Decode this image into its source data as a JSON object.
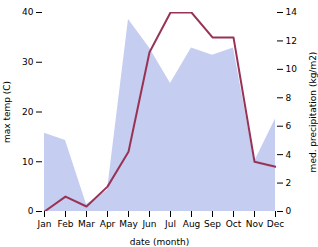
{
  "chart_data": {
    "type": "line",
    "categories": [
      "Jan",
      "Feb",
      "Mar",
      "Apr",
      "May",
      "Jun",
      "Jul",
      "Aug",
      "Sep",
      "Oct",
      "Nov",
      "Dec"
    ],
    "series": [
      {
        "type": "area",
        "axis": "y2",
        "color": "#c5cdf0",
        "values": [
          5.5,
          5.0,
          0.5,
          1.5,
          13.5,
          11.5,
          9.0,
          11.5,
          11.0,
          11.5,
          3.5,
          6.5
        ]
      },
      {
        "type": "line",
        "color": "#993355",
        "values": [
          0,
          3,
          1,
          5,
          12,
          32,
          40,
          40,
          35,
          35,
          10,
          9
        ]
      }
    ],
    "xlabel": "date (month)",
    "ylabel": "max temp (C)",
    "y2label": "med. precipitation (kg/m2)",
    "ylim": [
      0,
      40
    ],
    "yticks": [
      0,
      10,
      20,
      30,
      40
    ],
    "y2lim": [
      0,
      14
    ],
    "y2ticks": [
      0,
      2,
      4,
      6,
      8,
      10,
      12,
      14
    ],
    "grid": false
  }
}
